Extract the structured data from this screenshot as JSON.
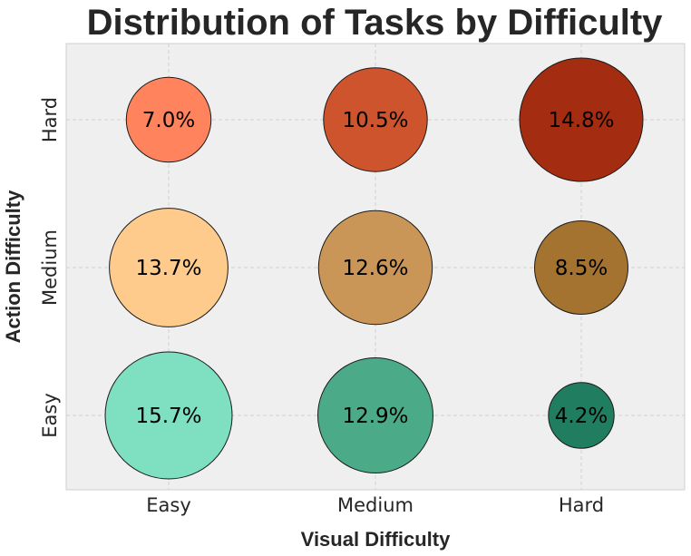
{
  "chart_data": {
    "type": "scatter",
    "title": "Distribution of Tasks by Difficulty",
    "xlabel": "Visual Difficulty",
    "ylabel": "Action Difficulty",
    "x_categories": [
      "Easy",
      "Medium",
      "Hard"
    ],
    "y_categories": [
      "Easy",
      "Medium",
      "Hard"
    ],
    "grid": true,
    "points": [
      {
        "x": "Easy",
        "y": "Easy",
        "value": 15.7,
        "label": "15.7%",
        "color": "#7fdfc1"
      },
      {
        "x": "Medium",
        "y": "Easy",
        "value": 12.9,
        "label": "12.9%",
        "color": "#4bab89"
      },
      {
        "x": "Hard",
        "y": "Easy",
        "value": 4.2,
        "label": "4.2%",
        "color": "#217d5f"
      },
      {
        "x": "Easy",
        "y": "Medium",
        "value": 13.7,
        "label": "13.7%",
        "color": "#fecb8c"
      },
      {
        "x": "Medium",
        "y": "Medium",
        "value": 12.6,
        "label": "12.6%",
        "color": "#ca9658"
      },
      {
        "x": "Hard",
        "y": "Medium",
        "value": 8.5,
        "label": "8.5%",
        "color": "#a57330"
      },
      {
        "x": "Easy",
        "y": "Hard",
        "value": 7.0,
        "label": "7.0%",
        "color": "#ff845e"
      },
      {
        "x": "Medium",
        "y": "Hard",
        "value": 10.5,
        "label": "10.5%",
        "color": "#cd542d"
      },
      {
        "x": "Hard",
        "y": "Hard",
        "value": 14.8,
        "label": "14.8%",
        "color": "#a42c10"
      }
    ]
  }
}
